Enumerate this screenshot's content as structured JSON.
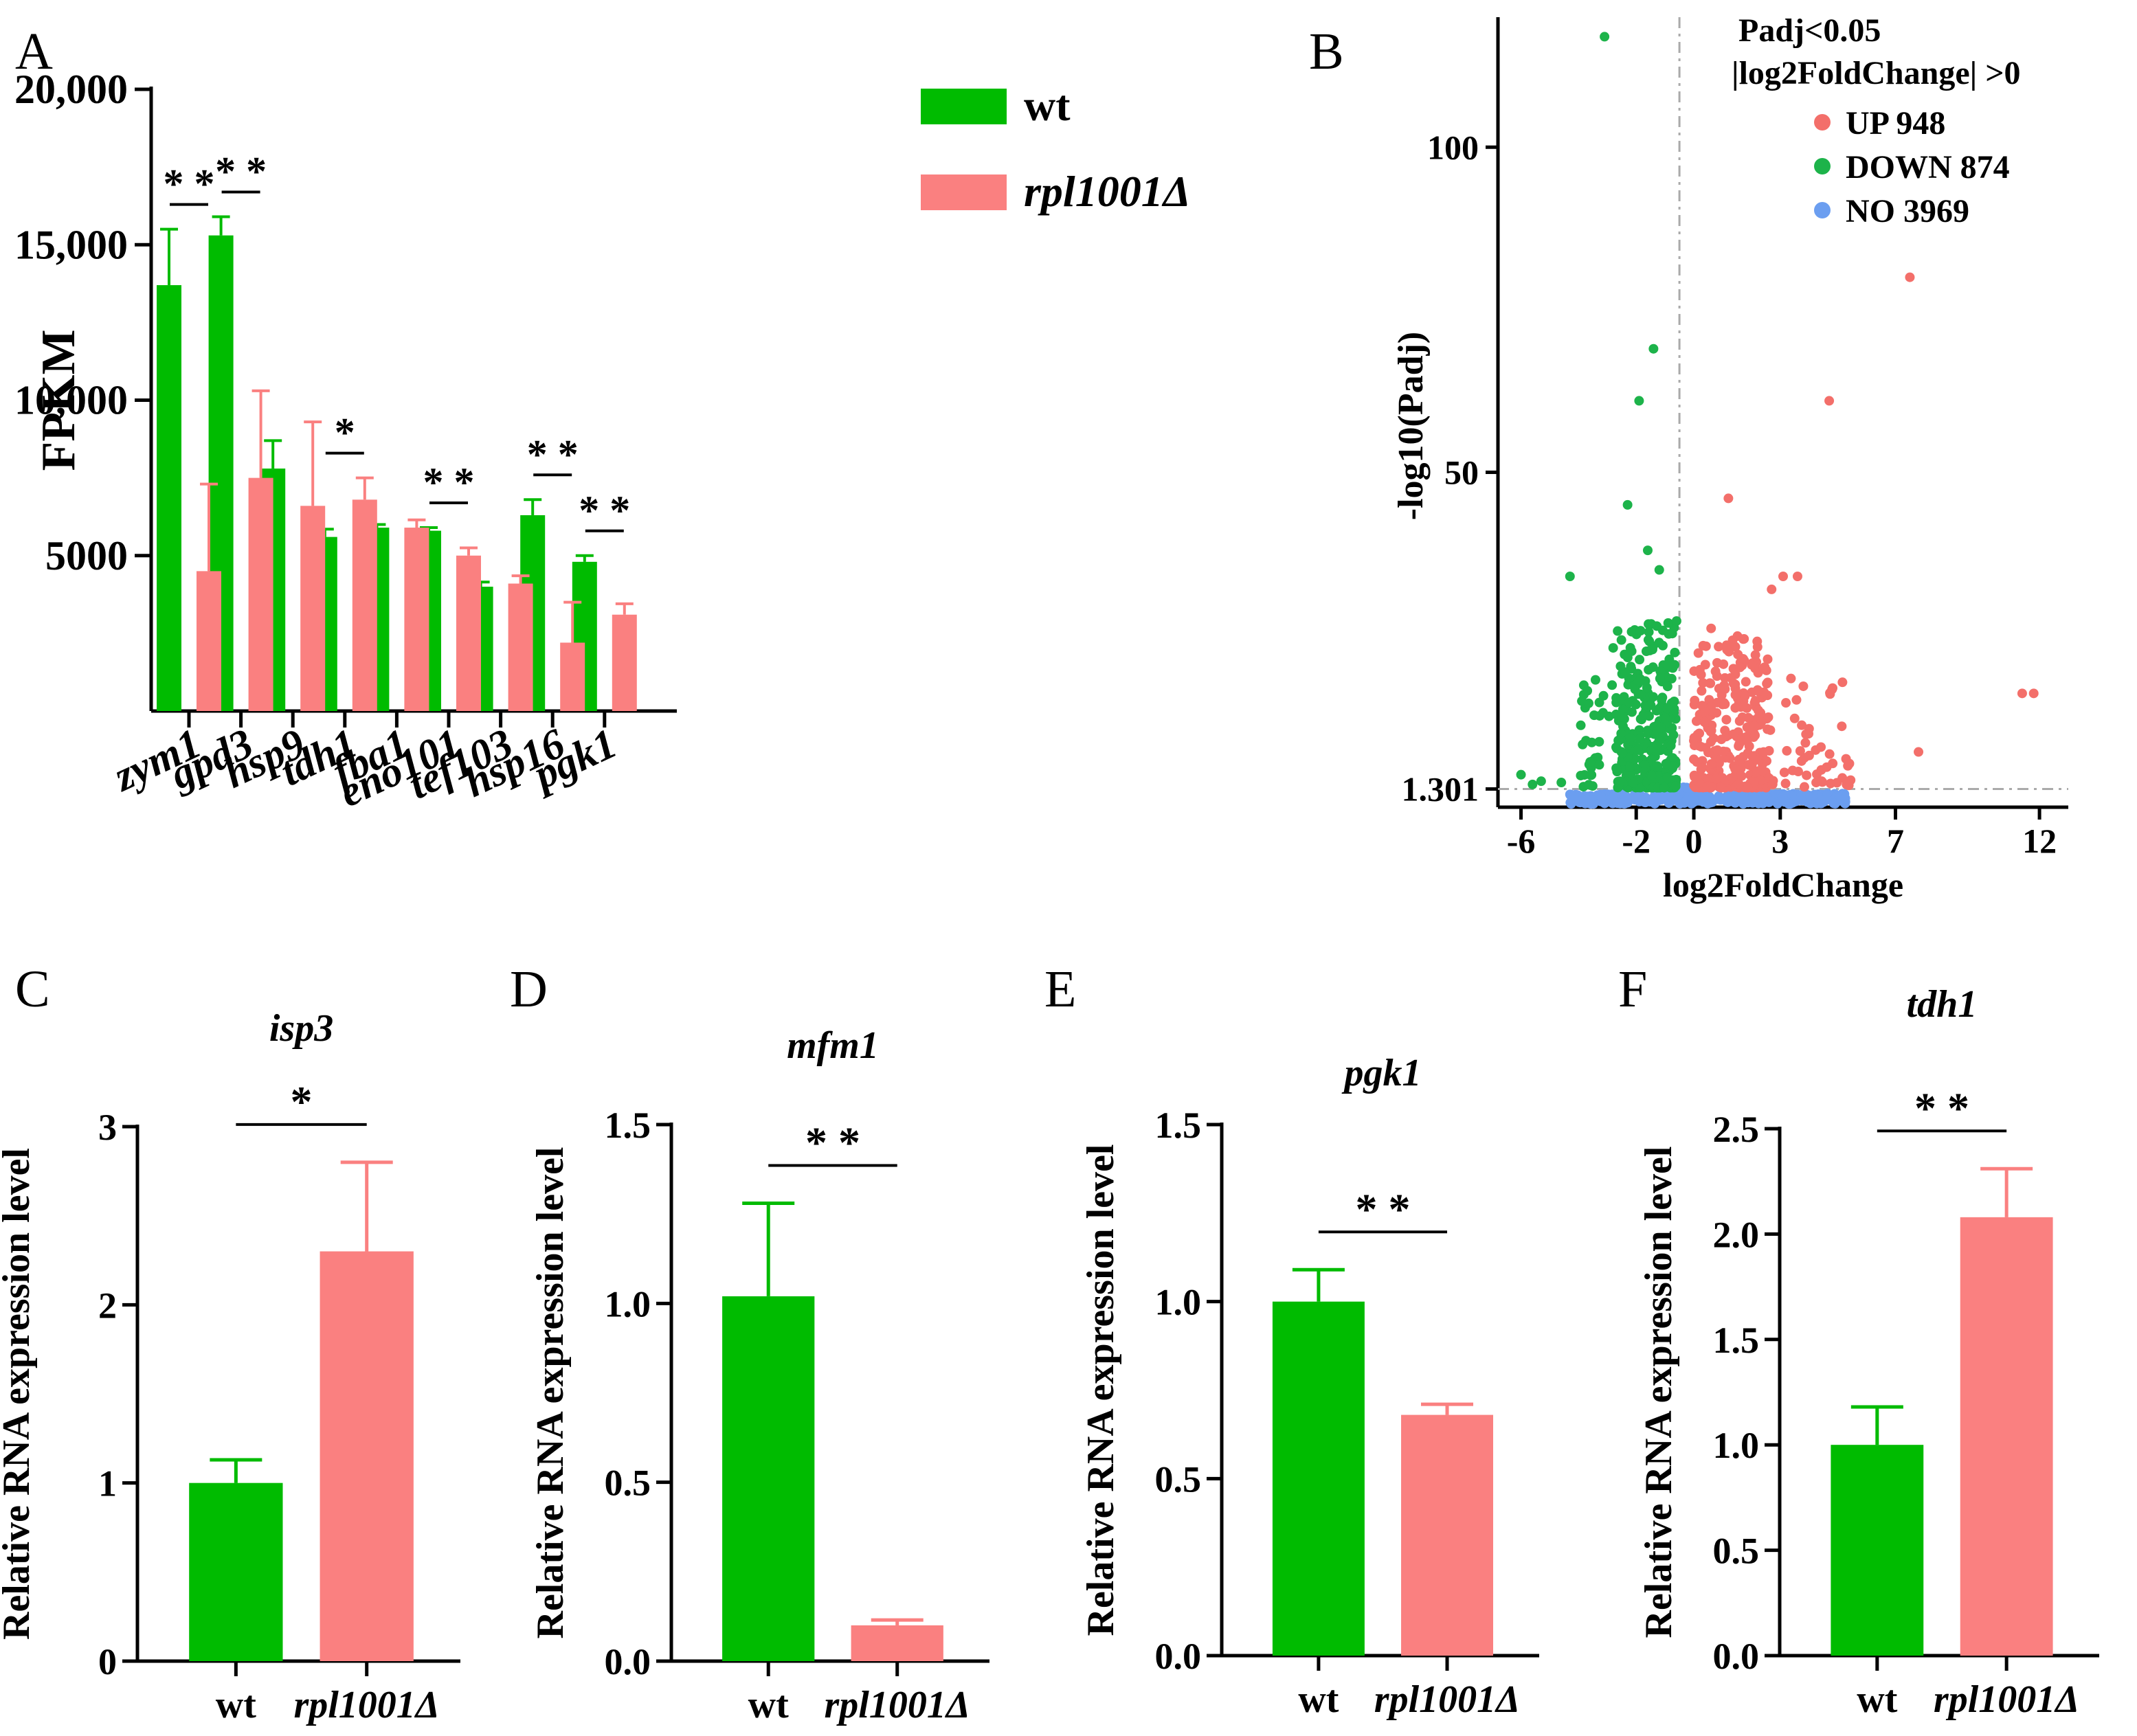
{
  "colors": {
    "wt": "#00bb00",
    "mut": "#fa8080",
    "up": "#f36f6a",
    "down": "#1db34a",
    "no": "#6b9ef0",
    "guide": "#aaaaaa"
  },
  "chart_data": [
    {
      "panel": "A",
      "type": "bar",
      "ylabel": "FPKM",
      "ylim": [
        0,
        20000
      ],
      "ytick_labels": [
        "5000",
        "10,000",
        "15,000",
        "20,000"
      ],
      "ytick_values": [
        5000,
        10000,
        15000,
        20000
      ],
      "categories": [
        "zym1",
        "gpd3",
        "hsp9",
        "tdh1",
        "fba1",
        "eno101",
        "tef103",
        "hsp16",
        "pgk1"
      ],
      "series": [
        {
          "name": "wt",
          "values": [
            13700,
            15300,
            7800,
            5600,
            5900,
            5800,
            4000,
            6300,
            4800
          ],
          "errors": [
            1800,
            600,
            900,
            250,
            100,
            100,
            150,
            500,
            200
          ]
        },
        {
          "name": "rpl1001Δ",
          "values": [
            4500,
            7500,
            6600,
            6800,
            5900,
            5000,
            4100,
            2200,
            3100
          ],
          "errors": [
            2800,
            2800,
            2700,
            700,
            250,
            250,
            250,
            1300,
            350
          ]
        }
      ],
      "significance": [
        "**",
        "**",
        "",
        "*",
        "",
        "**",
        "",
        "**",
        "**"
      ]
    },
    {
      "panel": "B",
      "type": "scatter",
      "xlabel": "log2FoldChange",
      "ylabel": "-log10(Padj)",
      "xlim": [
        -6.8,
        13
      ],
      "ylim": [
        -1.5,
        120
      ],
      "xticks": [
        -6,
        -2,
        0,
        3,
        7,
        12
      ],
      "yticks": [
        1.301,
        50,
        100
      ],
      "threshold_y": 1.301,
      "threshold_x": -0.5,
      "legend_title": [
        "Padj<0.05",
        "|log2FoldChange| >0"
      ],
      "legend": [
        {
          "key": "up",
          "label": "UP 948"
        },
        {
          "key": "down",
          "label": "DOWN 874"
        },
        {
          "key": "no",
          "label": "NO 3969"
        }
      ],
      "points": {
        "up": [
          [
            7.5,
            80
          ],
          [
            4.7,
            61
          ],
          [
            1.2,
            46
          ],
          [
            3.6,
            34
          ],
          [
            3.1,
            34
          ],
          [
            2.7,
            32
          ],
          [
            0.6,
            26
          ],
          [
            2.2,
            24
          ],
          [
            1.6,
            20
          ],
          [
            11.8,
            16
          ],
          [
            11.4,
            16
          ],
          [
            7.8,
            7
          ],
          [
            5.3,
            2
          ]
        ],
        "down": [
          [
            -3.1,
            117
          ],
          [
            -1.4,
            69
          ],
          [
            -1.9,
            61
          ],
          [
            -2.3,
            45
          ],
          [
            -1.6,
            38
          ],
          [
            -1.2,
            35
          ],
          [
            -4.3,
            34
          ],
          [
            -2.8,
            23
          ],
          [
            -6.0,
            3.5
          ],
          [
            -5.3,
            2.5
          ],
          [
            -4.6,
            2.3
          ],
          [
            -5.6,
            2.0
          ]
        ]
      },
      "cluster_counts": {
        "up": 948,
        "down": 874,
        "no": 3969
      }
    },
    {
      "panel": "C",
      "type": "bar",
      "title": "isp3",
      "ylabel": "Relative RNA expression level",
      "ylim": [
        0,
        3
      ],
      "ytick_labels": [
        "0",
        "1",
        "2",
        "3"
      ],
      "ytick_values": [
        0,
        1,
        2,
        3
      ],
      "categories": [
        "wt",
        "rpl1001Δ"
      ],
      "values": [
        1.0,
        2.3
      ],
      "errors": [
        0.13,
        0.5
      ],
      "significance": "*"
    },
    {
      "panel": "D",
      "type": "bar",
      "title": "mfm1",
      "ylabel": "Relative RNA expression level",
      "ylim": [
        0,
        1.5
      ],
      "ytick_labels": [
        "0.0",
        "0.5",
        "1.0",
        "1.5"
      ],
      "ytick_values": [
        0,
        0.5,
        1.0,
        1.5
      ],
      "categories": [
        "wt",
        "rpl1001Δ"
      ],
      "values": [
        1.02,
        0.1
      ],
      "errors": [
        0.26,
        0.015
      ],
      "significance": "**"
    },
    {
      "panel": "E",
      "type": "bar",
      "title": "pgk1",
      "ylabel": "Relative RNA expression level",
      "ylim": [
        0,
        1.5
      ],
      "ytick_labels": [
        "0.0",
        "0.5",
        "1.0",
        "1.5"
      ],
      "ytick_values": [
        0,
        0.5,
        1.0,
        1.5
      ],
      "categories": [
        "wt",
        "rpl1001Δ"
      ],
      "values": [
        1.0,
        0.68
      ],
      "errors": [
        0.09,
        0.03
      ],
      "significance": "**"
    },
    {
      "panel": "F",
      "type": "bar",
      "title": "tdh1",
      "ylabel": "Relative RNA expression level",
      "ylim": [
        0,
        2.5
      ],
      "ytick_labels": [
        "0.0",
        "0.5",
        "1.0",
        "1.5",
        "2.0",
        "2.5"
      ],
      "ytick_values": [
        0,
        0.5,
        1.0,
        1.5,
        2.0,
        2.5
      ],
      "categories": [
        "wt",
        "rpl1001Δ"
      ],
      "values": [
        1.0,
        2.08
      ],
      "errors": [
        0.18,
        0.23
      ],
      "significance": "**"
    }
  ]
}
